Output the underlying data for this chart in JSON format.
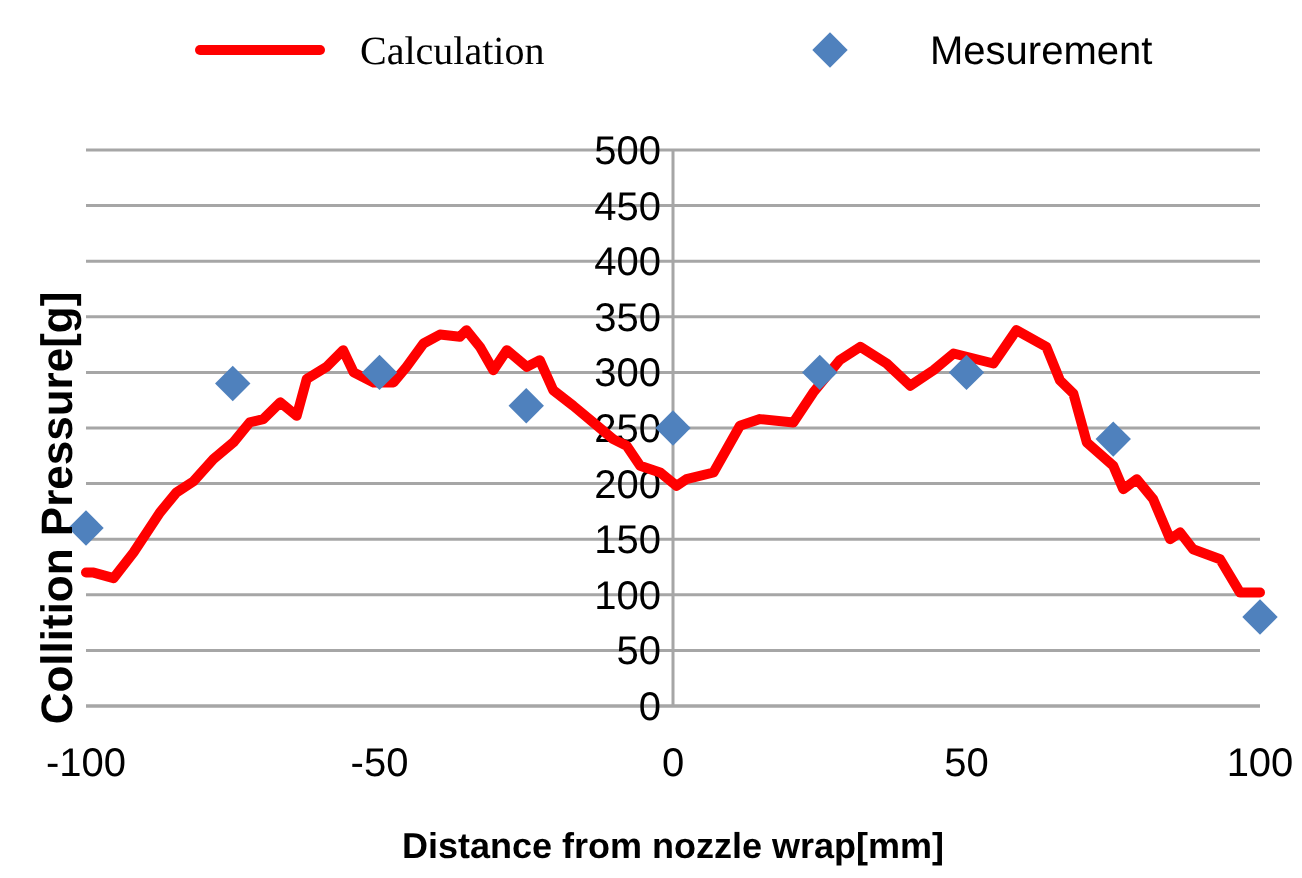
{
  "chart_data": {
    "type": "line",
    "xlabel": "Distance from nozzle wrap[mm]",
    "ylabel": "Collition Pressure[g]",
    "xlim": [
      -100,
      100
    ],
    "xticks": [
      -100,
      -50,
      0,
      50,
      100
    ],
    "ylim": [
      0,
      500
    ],
    "yticks": [
      0,
      50,
      100,
      150,
      200,
      250,
      300,
      350,
      400,
      450,
      500
    ],
    "grid": "y",
    "legend": "top",
    "series": [
      {
        "name": "Calculation",
        "color": "#ff0000",
        "marker": "none",
        "line_style": "solid",
        "x": [
          -100,
          -98.7,
          -95.3,
          -91.9,
          -87.4,
          -84.6,
          -81.7,
          -78.3,
          -74.9,
          -72.1,
          -69.8,
          -66.9,
          -64.1,
          -62.4,
          -59,
          -56.2,
          -54.4,
          -51,
          -47.6,
          -45.4,
          -42.5,
          -39.7,
          -36.3,
          -35.2,
          -32.9,
          -30.6,
          -28.3,
          -24.9,
          -22.7,
          -20.4,
          -17,
          -13.6,
          -10.2,
          -7.9,
          -5.6,
          -2.2,
          0.6,
          2.3,
          6.9,
          11.4,
          14.8,
          20.5,
          23.9,
          28.4,
          31.9,
          36.4,
          40.4,
          44.4,
          47.8,
          54.6,
          58.5,
          63.6,
          65.9,
          68.2,
          70.5,
          75,
          76.7,
          79,
          81.8,
          84.7,
          86.4,
          88.6,
          93.2,
          96.6,
          100
        ],
        "values": [
          120,
          120,
          115,
          138,
          174,
          192,
          202,
          222,
          237,
          255,
          258,
          273,
          261,
          294,
          305,
          320,
          300,
          291,
          291,
          305,
          326,
          334,
          332,
          338,
          323,
          302,
          320,
          305,
          311,
          284,
          270,
          255,
          240,
          234,
          216,
          210,
          198,
          204,
          210,
          252,
          258,
          255,
          282,
          311,
          323,
          308,
          288,
          302,
          317,
          308,
          338,
          323,
          293,
          281,
          237,
          216,
          195,
          204,
          186,
          150,
          156,
          141,
          132,
          102,
          102
        ]
      },
      {
        "name": "Mesurement",
        "type": "scatter",
        "color": "#4f81bd",
        "marker": "diamond",
        "x": [
          -100,
          -75,
          -50,
          -25,
          0,
          25,
          50,
          75,
          100
        ],
        "values": [
          160,
          290,
          300,
          270,
          250,
          300,
          300,
          240,
          80
        ]
      }
    ]
  }
}
